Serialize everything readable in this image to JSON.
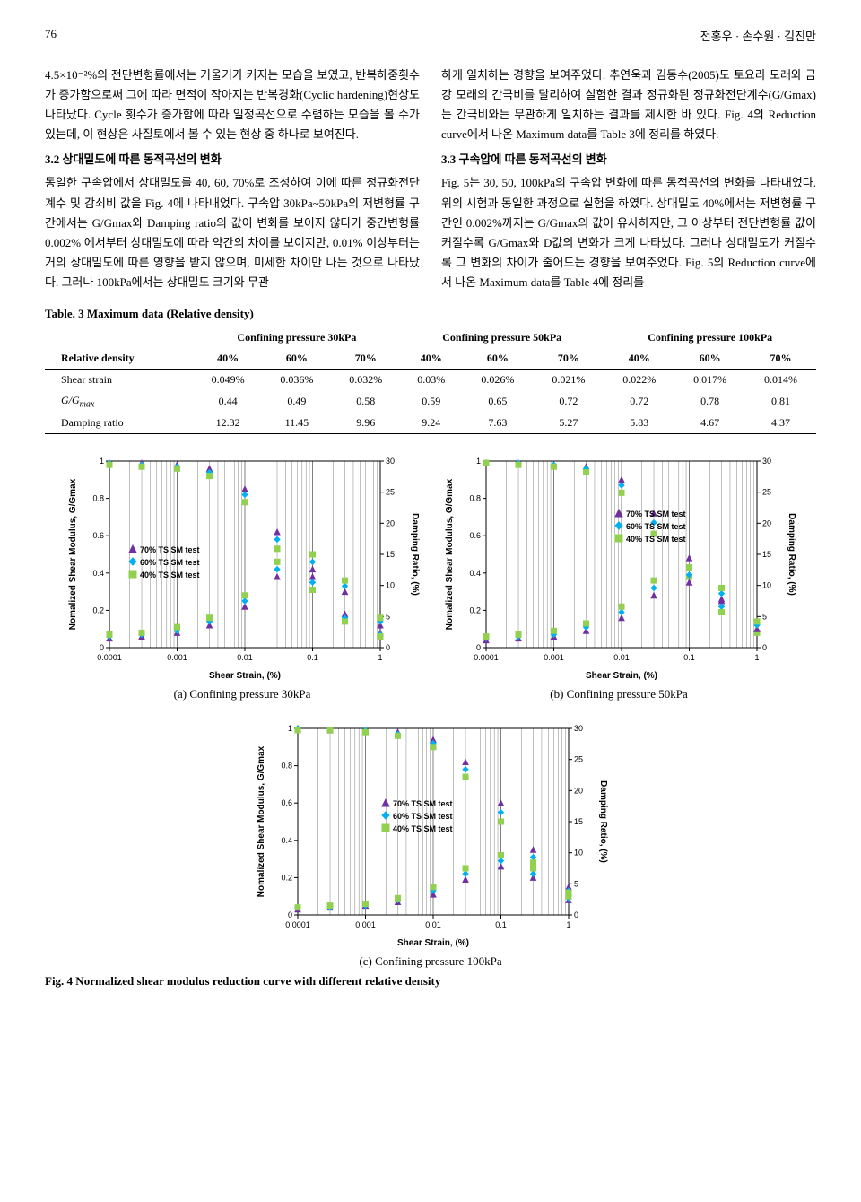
{
  "page": {
    "number": "76",
    "authors": "전홍우 · 손수원 · 김진만"
  },
  "body": {
    "left_p1": "4.5×10⁻²%의 전단변형률에서는 기울기가 커지는 모습을 보였고, 반복하중횟수가 증가함으로써 그에 따라 면적이 작아지는 반복경화(Cyclic hardening)현상도 나타났다. Cycle 횟수가 증가함에 따라 일정곡선으로 수렴하는 모습을 볼 수가 있는데, 이 현상은 사질토에서 볼 수 있는 현상 중 하나로 보여진다.",
    "right_p1": "하게 일치하는 경향을 보여주었다. 추연욱과 김동수(2005)도 토요라 모래와 금강 모래의 간극비를 달리하여 실험한 결과 정규화된 정규화전단계수(G/Gmax)는 간극비와는 무관하게 일치하는 결과를 제시한 바 있다. Fig. 4의 Reduction curve에서 나온 Maximum data를 Table 3에 정리를 하였다.",
    "left_h2": "3.2 상대밀도에 따른 동적곡선의 변화",
    "left_p2": "동일한 구속압에서 상대밀도를 40, 60, 70%로 조성하여 이에 따른 정규화전단계수 및 감쇠비 값을 Fig. 4에 나타내었다. 구속압 30kPa~50kPa의 저변형률 구간에서는 G/Gmax와 Damping ratio의 값이 변화를 보이지 않다가 중간변형률 0.002% 에서부터 상대밀도에 따라 약간의 차이를 보이지만, 0.01% 이상부터는 거의 상대밀도에 따른 영향을 받지 않으며, 미세한 차이만 나는 것으로 나타났다. 그러나 100kPa에서는 상대밀도 크기와 무관",
    "right_h2": "3.3 구속압에 따른 동적곡선의 변화",
    "right_p2": "Fig. 5는 30, 50, 100kPa의 구속압 변화에 따른 동적곡선의 변화를 나타내었다. 위의 시험과 동일한 과정으로 실험을 하였다. 상대밀도 40%에서는 저변형률 구간인 0.002%까지는 G/Gmax의 값이 유사하지만, 그 이상부터 전단변형률 값이 커질수록 G/Gmax와 D값의 변화가 크게 나타났다. 그러나 상대밀도가 커질수록 그 변화의 차이가 줄어드는 경향을 보여주었다. Fig. 5의 Reduction curve에서 나온 Maximum data를 Table 4에 정리를"
  },
  "table3": {
    "caption": "Table. 3 Maximum data (Relative density)",
    "group_headers": [
      "",
      "Confining pressure 30kPa",
      "Confining pressure 50kPa",
      "Confining pressure 100kPa"
    ],
    "sub_headers": [
      "Relative density",
      "40%",
      "60%",
      "70%",
      "40%",
      "60%",
      "70%",
      "40%",
      "60%",
      "70%"
    ],
    "rows": [
      [
        "Shear strain",
        "0.049%",
        "0.036%",
        "0.032%",
        "0.03%",
        "0.026%",
        "0.021%",
        "0.022%",
        "0.017%",
        "0.014%"
      ],
      [
        "G/Gmax",
        "0.44",
        "0.49",
        "0.58",
        "0.59",
        "0.65",
        "0.72",
        "0.72",
        "0.78",
        "0.81"
      ],
      [
        "Damping ratio",
        "12.32",
        "11.45",
        "9.96",
        "9.24",
        "7.63",
        "5.27",
        "5.83",
        "4.67",
        "4.37"
      ]
    ]
  },
  "charts": {
    "common": {
      "xlabel": "Shear Strain, (%)",
      "ylabel_left": "Nomalized Shear Modulus, G/Gmax",
      "ylabel_right": "Damping Ratio, (%)",
      "x_ticks": [
        "0.0001",
        "0.001",
        "0.01",
        "0.1",
        "1"
      ],
      "x_log_positions": [
        0,
        0.25,
        0.5,
        0.75,
        1.0
      ],
      "y1_ticks": [
        "0",
        "0.2",
        "0.4",
        "0.6",
        "0.8",
        "1"
      ],
      "y1_positions": [
        0,
        0.2,
        0.4,
        0.6,
        0.8,
        1.0
      ],
      "y2_ticks": [
        "0",
        "5",
        "10",
        "15",
        "20",
        "25",
        "30"
      ],
      "y2_positions": [
        0,
        0.1667,
        0.3333,
        0.5,
        0.6667,
        0.8333,
        1.0
      ],
      "legend": [
        "70% TS SM test",
        "60% TS SM test",
        "40% TS SM test"
      ],
      "colors": {
        "70": "#7030a0",
        "60": "#00b0f0",
        "40": "#92d050"
      },
      "markers": {
        "70": "triangle",
        "60": "diamond",
        "40": "square"
      },
      "marker_size": 6,
      "axis_color": "#000000",
      "grid_color": "#808080",
      "background": "#ffffff",
      "label_fontsize": 10,
      "tick_fontsize": 9,
      "legend_fontsize": 9
    },
    "panels": [
      {
        "id": "a",
        "caption": "(a) Confining pressure 30kPa",
        "series": {
          "g_70": [
            [
              0.0001,
              0.99
            ],
            [
              0.0003,
              0.99
            ],
            [
              0.001,
              0.98
            ],
            [
              0.003,
              0.96
            ],
            [
              0.01,
              0.85
            ],
            [
              0.03,
              0.62
            ],
            [
              0.1,
              0.38
            ],
            [
              0.3,
              0.18
            ],
            [
              1,
              0.08
            ]
          ],
          "g_60": [
            [
              0.0001,
              0.99
            ],
            [
              0.0003,
              0.98
            ],
            [
              0.001,
              0.97
            ],
            [
              0.003,
              0.94
            ],
            [
              0.01,
              0.82
            ],
            [
              0.03,
              0.58
            ],
            [
              0.1,
              0.35
            ],
            [
              0.3,
              0.16
            ],
            [
              1,
              0.07
            ]
          ],
          "g_40": [
            [
              0.0001,
              0.98
            ],
            [
              0.0003,
              0.97
            ],
            [
              0.001,
              0.96
            ],
            [
              0.003,
              0.92
            ],
            [
              0.01,
              0.78
            ],
            [
              0.03,
              0.53
            ],
            [
              0.1,
              0.31
            ],
            [
              0.3,
              0.14
            ],
            [
              1,
              0.06
            ]
          ],
          "d_70": [
            [
              0.0001,
              0.05
            ],
            [
              0.0003,
              0.06
            ],
            [
              0.001,
              0.08
            ],
            [
              0.003,
              0.12
            ],
            [
              0.01,
              0.22
            ],
            [
              0.03,
              0.38
            ],
            [
              0.1,
              0.42
            ],
            [
              0.3,
              0.3
            ],
            [
              1,
              0.12
            ]
          ],
          "d_60": [
            [
              0.0001,
              0.06
            ],
            [
              0.0003,
              0.07
            ],
            [
              0.001,
              0.09
            ],
            [
              0.003,
              0.14
            ],
            [
              0.01,
              0.25
            ],
            [
              0.03,
              0.42
            ],
            [
              0.1,
              0.46
            ],
            [
              0.3,
              0.33
            ],
            [
              1,
              0.14
            ]
          ],
          "d_40": [
            [
              0.0001,
              0.07
            ],
            [
              0.0003,
              0.08
            ],
            [
              0.001,
              0.11
            ],
            [
              0.003,
              0.16
            ],
            [
              0.01,
              0.28
            ],
            [
              0.03,
              0.46
            ],
            [
              0.1,
              0.5
            ],
            [
              0.3,
              0.36
            ],
            [
              1,
              0.16
            ]
          ]
        }
      },
      {
        "id": "b",
        "caption": "(b) Confining pressure 50kPa",
        "series": {
          "g_70": [
            [
              0.0001,
              0.99
            ],
            [
              0.0003,
              0.99
            ],
            [
              0.001,
              0.98
            ],
            [
              0.003,
              0.97
            ],
            [
              0.01,
              0.9
            ],
            [
              0.03,
              0.72
            ],
            [
              0.1,
              0.48
            ],
            [
              0.3,
              0.25
            ],
            [
              1,
              0.1
            ]
          ],
          "g_60": [
            [
              0.0001,
              0.99
            ],
            [
              0.0003,
              0.99
            ],
            [
              0.001,
              0.98
            ],
            [
              0.003,
              0.96
            ],
            [
              0.01,
              0.87
            ],
            [
              0.03,
              0.67
            ],
            [
              0.1,
              0.43
            ],
            [
              0.3,
              0.22
            ],
            [
              1,
              0.09
            ]
          ],
          "g_40": [
            [
              0.0001,
              0.99
            ],
            [
              0.0003,
              0.98
            ],
            [
              0.001,
              0.97
            ],
            [
              0.003,
              0.94
            ],
            [
              0.01,
              0.83
            ],
            [
              0.03,
              0.61
            ],
            [
              0.1,
              0.38
            ],
            [
              0.3,
              0.19
            ],
            [
              1,
              0.08
            ]
          ],
          "d_70": [
            [
              0.0001,
              0.04
            ],
            [
              0.0003,
              0.05
            ],
            [
              0.001,
              0.06
            ],
            [
              0.003,
              0.09
            ],
            [
              0.01,
              0.16
            ],
            [
              0.03,
              0.28
            ],
            [
              0.1,
              0.35
            ],
            [
              0.3,
              0.26
            ],
            [
              1,
              0.1
            ]
          ],
          "d_60": [
            [
              0.0001,
              0.05
            ],
            [
              0.0003,
              0.06
            ],
            [
              0.001,
              0.07
            ],
            [
              0.003,
              0.11
            ],
            [
              0.01,
              0.19
            ],
            [
              0.03,
              0.32
            ],
            [
              0.1,
              0.39
            ],
            [
              0.3,
              0.29
            ],
            [
              1,
              0.12
            ]
          ],
          "d_40": [
            [
              0.0001,
              0.06
            ],
            [
              0.0003,
              0.07
            ],
            [
              0.001,
              0.09
            ],
            [
              0.003,
              0.13
            ],
            [
              0.01,
              0.22
            ],
            [
              0.03,
              0.36
            ],
            [
              0.1,
              0.43
            ],
            [
              0.3,
              0.32
            ],
            [
              1,
              0.14
            ]
          ]
        }
      },
      {
        "id": "c",
        "caption": "(c) Confining pressure 100kPa",
        "series": {
          "g_70": [
            [
              0.0001,
              1.0
            ],
            [
              0.0003,
              0.99
            ],
            [
              0.001,
              0.99
            ],
            [
              0.003,
              0.98
            ],
            [
              0.01,
              0.94
            ],
            [
              0.03,
              0.82
            ],
            [
              0.1,
              0.6
            ],
            [
              0.3,
              0.35
            ],
            [
              1,
              0.15
            ]
          ],
          "g_60": [
            [
              0.0001,
              1.0
            ],
            [
              0.0003,
              0.99
            ],
            [
              0.001,
              0.99
            ],
            [
              0.003,
              0.97
            ],
            [
              0.01,
              0.92
            ],
            [
              0.03,
              0.78
            ],
            [
              0.1,
              0.55
            ],
            [
              0.3,
              0.31
            ],
            [
              1,
              0.13
            ]
          ],
          "g_40": [
            [
              0.0001,
              0.99
            ],
            [
              0.0003,
              0.99
            ],
            [
              0.001,
              0.98
            ],
            [
              0.003,
              0.96
            ],
            [
              0.01,
              0.9
            ],
            [
              0.03,
              0.74
            ],
            [
              0.1,
              0.5
            ],
            [
              0.3,
              0.28
            ],
            [
              1,
              0.12
            ]
          ],
          "d_70": [
            [
              0.0001,
              0.03
            ],
            [
              0.0003,
              0.04
            ],
            [
              0.001,
              0.05
            ],
            [
              0.003,
              0.07
            ],
            [
              0.01,
              0.11
            ],
            [
              0.03,
              0.19
            ],
            [
              0.1,
              0.26
            ],
            [
              0.3,
              0.2
            ],
            [
              1,
              0.08
            ]
          ],
          "d_60": [
            [
              0.0001,
              0.04
            ],
            [
              0.0003,
              0.04
            ],
            [
              0.001,
              0.05
            ],
            [
              0.003,
              0.08
            ],
            [
              0.01,
              0.13
            ],
            [
              0.03,
              0.22
            ],
            [
              0.1,
              0.29
            ],
            [
              0.3,
              0.22
            ],
            [
              1,
              0.09
            ]
          ],
          "d_40": [
            [
              0.0001,
              0.04
            ],
            [
              0.0003,
              0.05
            ],
            [
              0.001,
              0.06
            ],
            [
              0.003,
              0.09
            ],
            [
              0.01,
              0.15
            ],
            [
              0.03,
              0.25
            ],
            [
              0.1,
              0.32
            ],
            [
              0.3,
              0.25
            ],
            [
              1,
              0.1
            ]
          ]
        }
      }
    ]
  },
  "fig4_caption": "Fig. 4 Normalized shear modulus reduction curve with different relative density"
}
